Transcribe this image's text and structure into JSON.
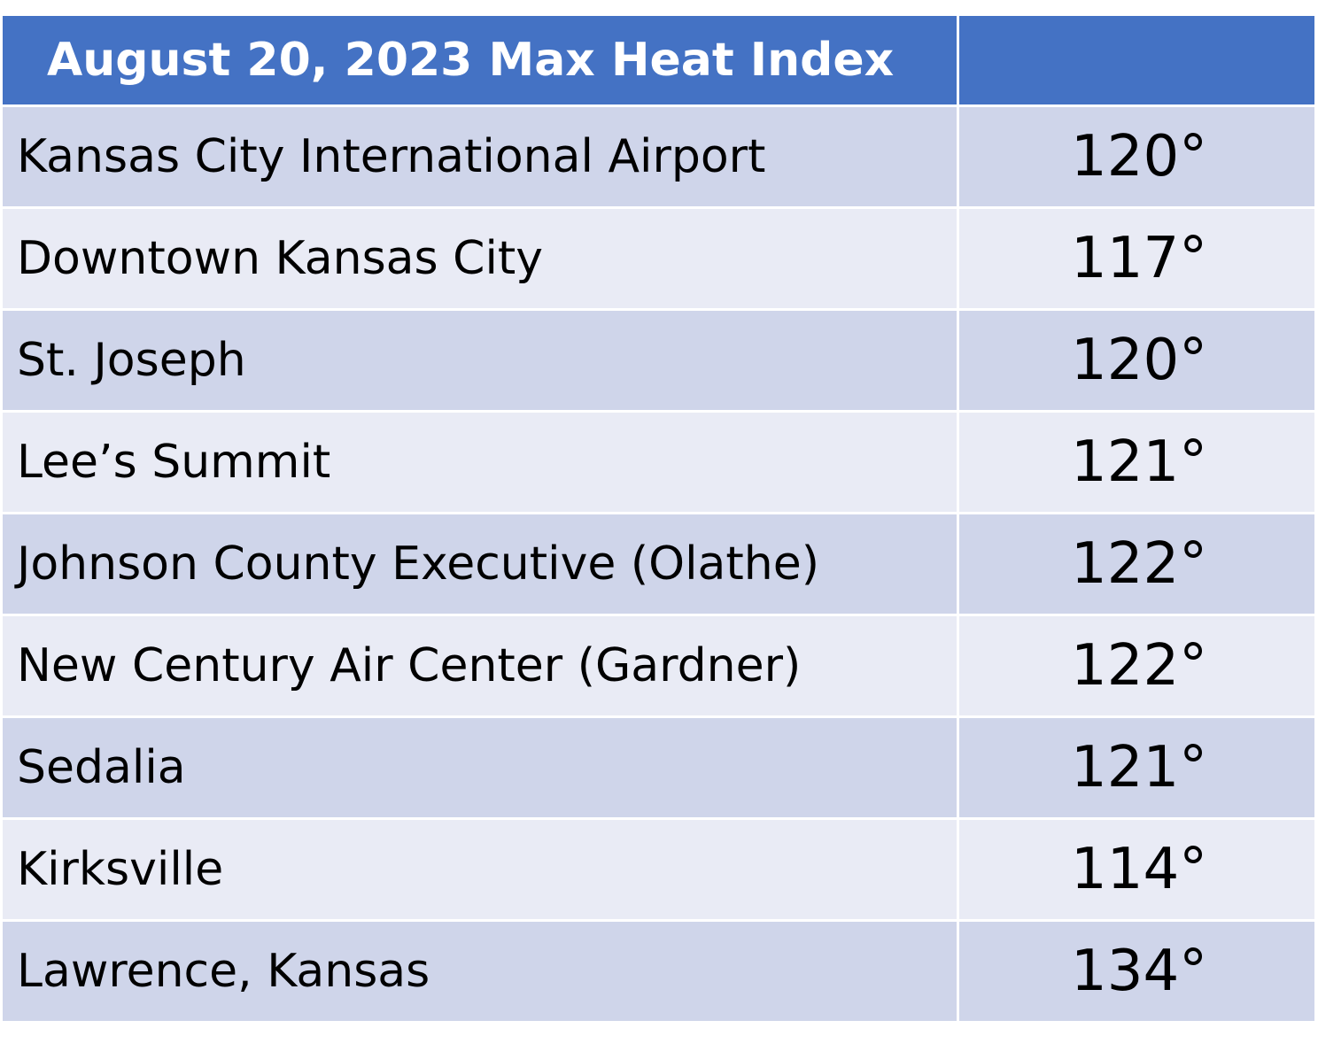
{
  "chart_data": {
    "type": "table",
    "title": "August 20, 2023 Max Heat Index",
    "columns": [
      "",
      ""
    ],
    "rows": [
      {
        "location": "Kansas City International Airport",
        "heat_index": "120°"
      },
      {
        "location": "Downtown Kansas City",
        "heat_index": "117°"
      },
      {
        "location": "St. Joseph",
        "heat_index": "120°"
      },
      {
        "location": "Lee’s Summit",
        "heat_index": "121°"
      },
      {
        "location": "Johnson County Executive (Olathe)",
        "heat_index": "122°"
      },
      {
        "location": "New Century Air Center (Gardner)",
        "heat_index": "122°"
      },
      {
        "location": "Sedalia",
        "heat_index": "121°"
      },
      {
        "location": "Kirksville",
        "heat_index": "114°"
      },
      {
        "location": "Lawrence, Kansas",
        "heat_index": "134°"
      }
    ]
  },
  "colors": {
    "header_bg": "#4472c4",
    "header_text": "#ffffff",
    "row_odd": "#cfd5ea",
    "row_even": "#e9ebf5"
  }
}
